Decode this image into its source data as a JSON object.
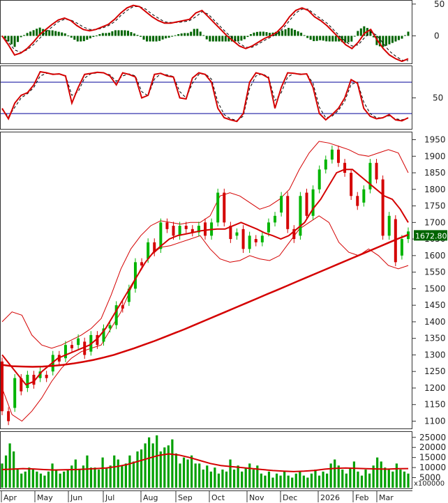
{
  "chart_data": [
    {
      "type": "line",
      "panel": "macd",
      "y_ticks": [
        50,
        0
      ],
      "ylim": [
        -40,
        52
      ],
      "colors": {
        "signal": "#d40000",
        "macd": "#000000",
        "histogram": "#006400"
      },
      "series": [
        {
          "values": [
            0,
            -14,
            -30,
            -27,
            -20,
            -10,
            2,
            10,
            18,
            25,
            28,
            24,
            16,
            10,
            8,
            10,
            14,
            18,
            26,
            36,
            44,
            48,
            46,
            38,
            30,
            24,
            20,
            20,
            22,
            24,
            26,
            36,
            40,
            30,
            20,
            10,
            0,
            -8,
            -16,
            -20,
            -16,
            -10,
            -4,
            0,
            6,
            16,
            30,
            40,
            44,
            40,
            30,
            24,
            16,
            6,
            -4,
            -14,
            -20,
            -10,
            4,
            10,
            -6,
            -20,
            -30,
            -36,
            -40,
            -36
          ]
        },
        {
          "values": [
            0,
            -10,
            -22,
            -26,
            -22,
            -14,
            -4,
            6,
            14,
            22,
            26,
            25,
            20,
            14,
            10,
            10,
            12,
            16,
            22,
            32,
            40,
            46,
            46,
            42,
            34,
            28,
            22,
            21,
            21,
            22,
            24,
            30,
            38,
            34,
            24,
            14,
            4,
            -4,
            -12,
            -18,
            -18,
            -13,
            -7,
            -2,
            3,
            12,
            24,
            36,
            42,
            42,
            34,
            27,
            20,
            10,
            0,
            -9,
            -16,
            -14,
            -3,
            6,
            1,
            -12,
            -24,
            -32,
            -38,
            -39
          ]
        }
      ]
    },
    {
      "type": "line",
      "panel": "stochastic",
      "y_ticks": [
        50
      ],
      "ylim": [
        -8,
        108
      ],
      "reference_lines": [
        80,
        20
      ],
      "colors": {
        "k_line": "#d40000",
        "d_line": "#000000",
        "reference": "#00009a"
      },
      "series": [
        {
          "values": [
            30,
            10,
            40,
            55,
            60,
            75,
            100,
            98,
            95,
            96,
            92,
            40,
            70,
            95,
            97,
            99,
            98,
            92,
            75,
            98,
            95,
            90,
            50,
            55,
            95,
            97,
            92,
            90,
            50,
            48,
            88,
            98,
            95,
            80,
            30,
            12,
            8,
            5,
            20,
            80,
            98,
            95,
            88,
            30,
            70,
            98,
            97,
            95,
            96,
            70,
            20,
            8,
            18,
            30,
            50,
            85,
            78,
            30,
            15,
            10,
            12,
            18,
            8,
            6,
            12
          ]
        },
        {
          "values": [
            28,
            14,
            32,
            50,
            58,
            70,
            92,
            97,
            96,
            95,
            93,
            55,
            62,
            88,
            96,
            98,
            98,
            94,
            82,
            92,
            96,
            92,
            62,
            54,
            86,
            96,
            94,
            91,
            62,
            50,
            78,
            95,
            96,
            86,
            42,
            18,
            10,
            7,
            15,
            68,
            92,
            96,
            90,
            45,
            60,
            90,
            97,
            96,
            96,
            78,
            32,
            12,
            15,
            26,
            44,
            76,
            80,
            42,
            20,
            12,
            12,
            16,
            10,
            8,
            11
          ]
        }
      ]
    },
    {
      "type": "line",
      "panel": "price",
      "y_ticks": [
        1950,
        1900,
        1850,
        1800,
        1750,
        1700,
        1650,
        1600,
        1550,
        1500,
        1450,
        1400,
        1350,
        1300,
        1250,
        1200,
        1150,
        1100
      ],
      "ylim": [
        1080,
        1970
      ],
      "last_price_label": "1672.800",
      "colors": {
        "up": "#00b400",
        "down": "#d40000",
        "ma": "#d40000",
        "band": "#d40000",
        "label_bg": "#006400"
      },
      "candles": [
        [
          1280,
          1130
        ],
        [
          1130,
          1100
        ],
        [
          1140,
          1230
        ],
        [
          1230,
          1190
        ],
        [
          1200,
          1240
        ],
        [
          1240,
          1210
        ],
        [
          1230,
          1250
        ],
        [
          1240,
          1230
        ],
        [
          1250,
          1300
        ],
        [
          1300,
          1280
        ],
        [
          1290,
          1330
        ],
        [
          1330,
          1320
        ],
        [
          1330,
          1350
        ],
        [
          1340,
          1300
        ],
        [
          1310,
          1360
        ],
        [
          1360,
          1330
        ],
        [
          1340,
          1380
        ],
        [
          1380,
          1390
        ],
        [
          1390,
          1450
        ],
        [
          1450,
          1440
        ],
        [
          1460,
          1500
        ],
        [
          1500,
          1580
        ],
        [
          1580,
          1570
        ],
        [
          1590,
          1640
        ],
        [
          1640,
          1610
        ],
        [
          1620,
          1700
        ],
        [
          1700,
          1680
        ],
        [
          1690,
          1660
        ],
        [
          1660,
          1690
        ],
        [
          1690,
          1680
        ],
        [
          1680,
          1670
        ],
        [
          1670,
          1690
        ],
        [
          1700,
          1660
        ],
        [
          1660,
          1700
        ],
        [
          1700,
          1790
        ],
        [
          1790,
          1700
        ],
        [
          1690,
          1650
        ],
        [
          1660,
          1670
        ],
        [
          1680,
          1620
        ],
        [
          1620,
          1660
        ],
        [
          1650,
          1640
        ],
        [
          1640,
          1660
        ],
        [
          1670,
          1700
        ],
        [
          1700,
          1720
        ],
        [
          1730,
          1780
        ],
        [
          1780,
          1680
        ],
        [
          1680,
          1650
        ],
        [
          1660,
          1780
        ],
        [
          1790,
          1720
        ],
        [
          1720,
          1800
        ],
        [
          1800,
          1860
        ],
        [
          1860,
          1890
        ],
        [
          1890,
          1920
        ],
        [
          1920,
          1880
        ],
        [
          1880,
          1850
        ],
        [
          1850,
          1780
        ],
        [
          1780,
          1750
        ],
        [
          1760,
          1800
        ],
        [
          1800,
          1880
        ],
        [
          1880,
          1830
        ],
        [
          1830,
          1660
        ],
        [
          1660,
          1720
        ],
        [
          1710,
          1580
        ],
        [
          1600,
          1650
        ],
        [
          1650,
          1672.8
        ]
      ],
      "series": [
        {
          "values": [
            1300,
            1270,
            1240,
            1210,
            1220,
            1250,
            1270,
            1290,
            1300,
            1310,
            1320,
            1330,
            1350,
            1380,
            1420,
            1460,
            1500,
            1540,
            1580,
            1610,
            1630,
            1650,
            1660,
            1665,
            1670,
            1675,
            1678,
            1680,
            1680,
            1690,
            1700,
            1690,
            1680,
            1668,
            1660,
            1650,
            1660,
            1680,
            1700,
            1740,
            1770,
            1810,
            1850,
            1860,
            1860,
            1840,
            1820,
            1800,
            1780,
            1770,
            1740,
            1700
          ]
        },
        {
          "values": [
            1270,
            1266,
            1265,
            1264,
            1265,
            1267,
            1270,
            1274,
            1279,
            1285,
            1292,
            1300,
            1310,
            1320,
            1331,
            1342,
            1354,
            1366,
            1378,
            1391,
            1404,
            1417,
            1430,
            1443,
            1456,
            1469,
            1482,
            1495,
            1508,
            1521,
            1534,
            1547,
            1560,
            1573,
            1586,
            1599,
            1612,
            1625,
            1638,
            1651,
            1663
          ]
        },
        {
          "values": [
            1400,
            1430,
            1420,
            1360,
            1330,
            1320,
            1330,
            1345,
            1360,
            1380,
            1410,
            1480,
            1560,
            1620,
            1660,
            1690,
            1705,
            1700,
            1695,
            1700,
            1700,
            1720,
            1780,
            1790,
            1780,
            1760,
            1740,
            1750,
            1770,
            1800,
            1860,
            1910,
            1945,
            1940,
            1930,
            1920,
            1905,
            1900,
            1910,
            1920,
            1910,
            1850
          ]
        },
        {
          "values": [
            1200,
            1120,
            1100,
            1130,
            1170,
            1220,
            1260,
            1290,
            1310,
            1320,
            1330,
            1380,
            1430,
            1500,
            1560,
            1600,
            1625,
            1630,
            1640,
            1650,
            1660,
            1620,
            1590,
            1580,
            1585,
            1600,
            1590,
            1585,
            1600,
            1640,
            1680,
            1700,
            1720,
            1700,
            1640,
            1610,
            1600,
            1620,
            1600,
            1570,
            1560,
            1570
          ]
        }
      ]
    },
    {
      "type": "bar",
      "panel": "volume",
      "y_ticks": [
        "25000",
        "20000",
        "15000",
        "10000",
        "5000"
      ],
      "ylim": [
        0,
        27000
      ],
      "unit_label": "x100000",
      "colors": {
        "bars": "#00a000",
        "ma": "#d40000"
      },
      "values": [
        12000,
        16000,
        22000,
        18000,
        9000,
        7000,
        8000,
        10000,
        9000,
        8000,
        7000,
        6000,
        8000,
        12000,
        9000,
        7000,
        8000,
        9000,
        11000,
        14000,
        9000,
        11000,
        16000,
        10000,
        10000,
        9000,
        15000,
        10000,
        11000,
        16000,
        14000,
        11000,
        12000,
        16000,
        13000,
        18000,
        19000,
        22000,
        25000,
        22000,
        26000,
        18000,
        20000,
        21000,
        24000,
        17000,
        12000,
        15000,
        14000,
        16000,
        12000,
        12000,
        9000,
        11000,
        8000,
        10000,
        7000,
        9000,
        8000,
        14000,
        9000,
        11000,
        8000,
        10000,
        12000,
        9000,
        11000,
        7000,
        6000,
        8000,
        5000,
        7000,
        6000,
        8000,
        6000,
        5000,
        7000,
        8000,
        6000,
        5000,
        7000,
        9000,
        6000,
        8000,
        7000,
        12000,
        14000,
        11000,
        9000,
        7000,
        10000,
        13000,
        8000,
        6000,
        9000,
        7000,
        11000,
        15000,
        13000,
        10000,
        9000,
        8000,
        12000,
        9000,
        8000,
        7000
      ],
      "series": [
        {
          "values": [
            9000,
            9200,
            9500,
            9300,
            9000,
            8800,
            8900,
            9000,
            9200,
            9500,
            9800,
            10500,
            11500,
            13000,
            14500,
            16000,
            16800,
            16200,
            15000,
            13500,
            12000,
            11000,
            10500,
            10000,
            9500,
            9000,
            8500,
            8200,
            8000,
            8200,
            8600,
            9200,
            9600,
            9800,
            9600,
            9400,
            9300,
            9200,
            9400,
            9500
          ]
        }
      ]
    },
    {
      "type": "axis",
      "panel": "x-axis",
      "x_ticks": [
        "Apr",
        "May",
        "Jun",
        "Jul",
        "Aug",
        "Sep",
        "Oct",
        "Nov",
        "Dec",
        "2026",
        "Feb",
        "Mar"
      ]
    }
  ]
}
